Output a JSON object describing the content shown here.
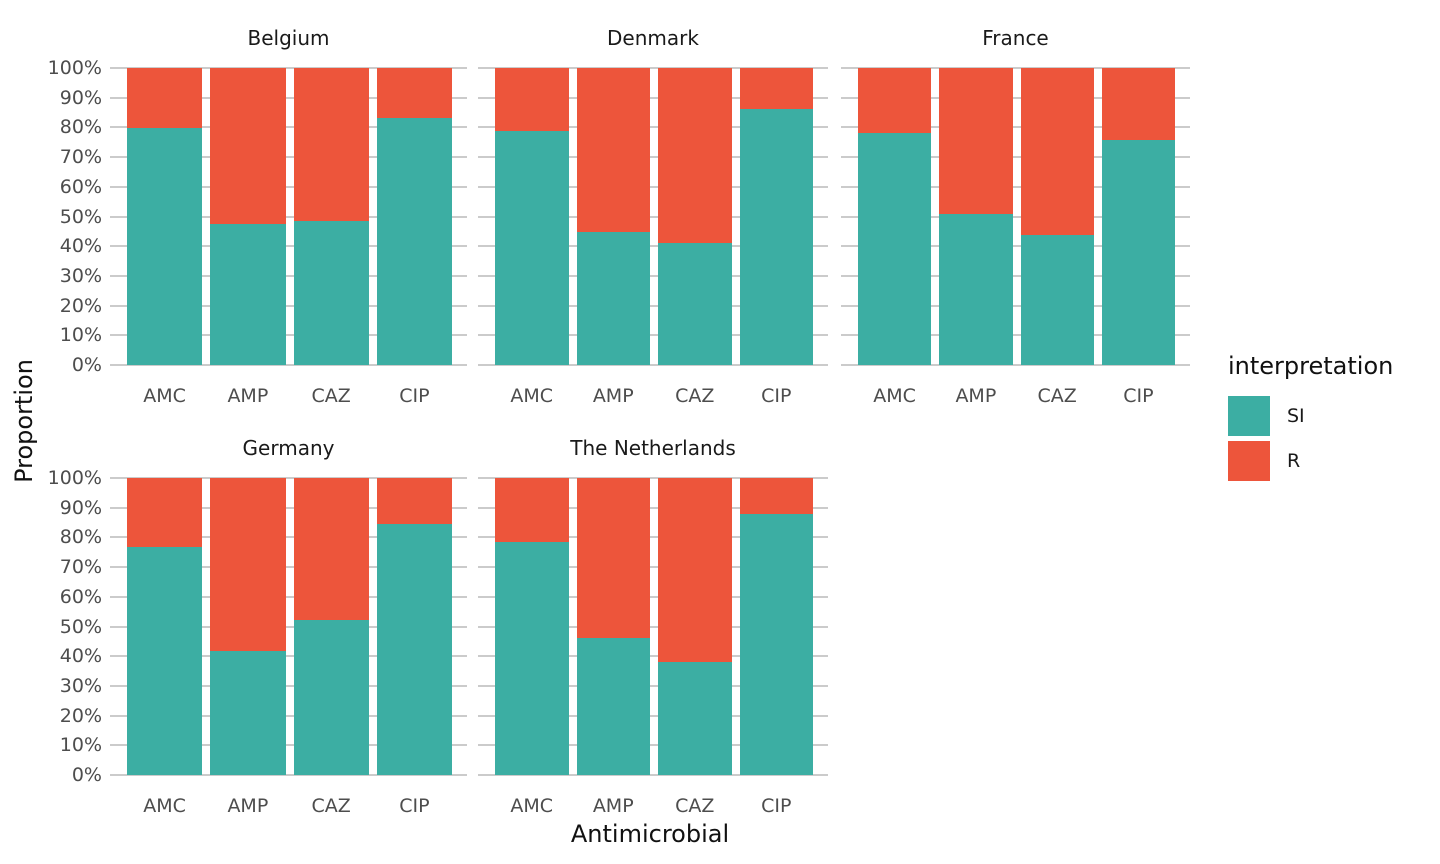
{
  "chart_data": {
    "type": "bar",
    "stacked": true,
    "orientation": "vertical",
    "xlabel": "Antimicrobial",
    "ylabel": "Proportion",
    "ylim": [
      0,
      100
    ],
    "ytick_labels": [
      "0%",
      "10%",
      "20%",
      "30%",
      "40%",
      "50%",
      "60%",
      "70%",
      "80%",
      "90%",
      "100%"
    ],
    "grid": true,
    "categories": [
      "AMC",
      "AMP",
      "CAZ",
      "CIP"
    ],
    "legend": {
      "title": "interpretation",
      "position": "right",
      "items": [
        {
          "name": "SI",
          "color": "#3CAEA3"
        },
        {
          "name": "R",
          "color": "#ED553B"
        }
      ]
    },
    "facets": [
      {
        "title": "Belgium",
        "series": [
          {
            "name": "SI",
            "values": [
              79.9,
              47.4,
              48.6,
              83.2
            ]
          },
          {
            "name": "R",
            "values": [
              20.1,
              52.6,
              51.4,
              16.8
            ]
          }
        ]
      },
      {
        "title": "Denmark",
        "series": [
          {
            "name": "SI",
            "values": [
              78.9,
              44.8,
              41.0,
              86.1
            ]
          },
          {
            "name": "R",
            "values": [
              21.1,
              55.2,
              59.0,
              13.9
            ]
          }
        ]
      },
      {
        "title": "France",
        "series": [
          {
            "name": "SI",
            "values": [
              78.2,
              50.8,
              43.8,
              75.7
            ]
          },
          {
            "name": "R",
            "values": [
              21.8,
              49.2,
              56.2,
              24.3
            ]
          }
        ]
      },
      {
        "title": "Germany",
        "series": [
          {
            "name": "SI",
            "values": [
              76.6,
              41.6,
              52.2,
              84.6
            ]
          },
          {
            "name": "R",
            "values": [
              23.4,
              58.4,
              47.8,
              15.4
            ]
          }
        ]
      },
      {
        "title": "The Netherlands",
        "series": [
          {
            "name": "SI",
            "values": [
              78.5,
              46.0,
              38.2,
              87.8
            ]
          },
          {
            "name": "R",
            "values": [
              21.5,
              54.0,
              61.8,
              12.2
            ]
          }
        ]
      }
    ]
  }
}
